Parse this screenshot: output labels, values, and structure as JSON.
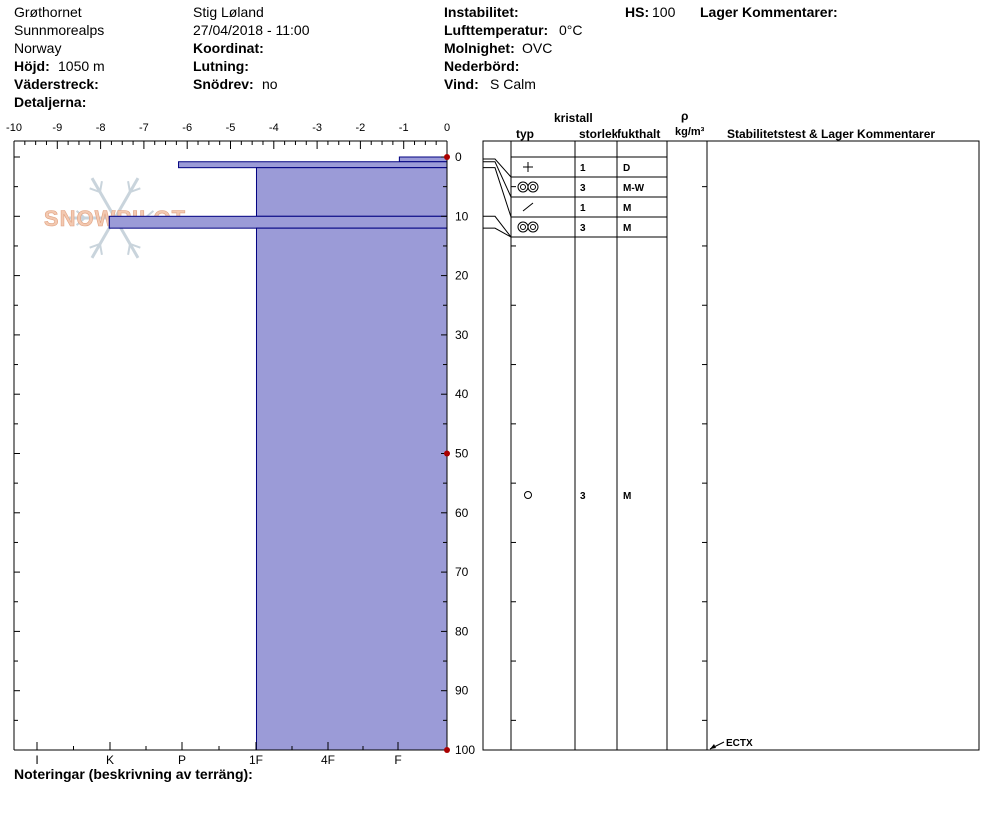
{
  "header": {
    "location": "Grøthornet",
    "range": "Sunnmorealps",
    "country": "Norway",
    "elevation_label": "Höjd:",
    "elevation_value": "1050 m",
    "aspect_label": "Väderstreck:",
    "details_label": "Detaljerna:",
    "observer": "Stig Løland",
    "datetime": "27/04/2018 - 11:00",
    "coord_label": "Koordinat:",
    "slope_label": "Lutning:",
    "wind_loading_label": "Snödrev:",
    "wind_loading_value": "no",
    "instability_label": "Instabilitet:",
    "air_temp_label": "Lufttemperatur:",
    "air_temp_value": "0°C",
    "sky_label": "Molnighet:",
    "sky_value": "OVC",
    "precip_label": "Nederbörd:",
    "wind_label": "Vind:",
    "wind_value": "S Calm",
    "hs_label": "HS:",
    "hs_value": "100",
    "layer_comments_label": "Lager Kommentarer:"
  },
  "footer": {
    "notes_label": "Noteringar (beskrivning av terräng):"
  },
  "logo_text": "SNOWPILOT",
  "table_headers": {
    "kristall": "kristall",
    "typ": "typ",
    "storlek": "storlek",
    "fukthalt": "fukthalt",
    "rho": "ρ",
    "density_unit": "kg/m³",
    "stability": "Stabilitetstest & Lager Kommentarer"
  },
  "chart_data": {
    "type": "bar",
    "title": "",
    "x_axis_top": {
      "ticks": [
        "-10",
        "-9",
        "-8",
        "-7",
        "-6",
        "-5",
        "-4",
        "-3",
        "-2",
        "-1",
        "0"
      ],
      "range": [
        -10,
        0
      ]
    },
    "hardness_axis": {
      "ticks": [
        "I",
        "K",
        "P",
        "1F",
        "4F",
        "F"
      ]
    },
    "y_axis": {
      "ticks": [
        "0",
        "10",
        "20",
        "30",
        "40",
        "50",
        "60",
        "70",
        "80",
        "90",
        "100"
      ],
      "range": [
        0,
        100
      ],
      "inverted": true
    },
    "temperature_points": [
      {
        "depth": 0,
        "temp": 0
      },
      {
        "depth": 50,
        "temp": 0
      },
      {
        "depth": 100,
        "temp": 0
      }
    ],
    "hardness_layers": [
      {
        "top": 0,
        "bottom": 0.8,
        "hardness_index": -1.1
      },
      {
        "top": 0.8,
        "bottom": 1.8,
        "hardness_index": -6.2
      },
      {
        "top": 1.8,
        "bottom": 10,
        "hardness_index": -4.4
      },
      {
        "top": 10,
        "bottom": 12,
        "hardness_index": -7.8
      },
      {
        "top": 12,
        "bottom": 100,
        "hardness_index": -4.4
      }
    ],
    "layer_rows": [
      {
        "grain": "plus",
        "size": "1",
        "moisture": "D"
      },
      {
        "grain": "rounds",
        "size": "3",
        "moisture": "M-W"
      },
      {
        "grain": "slash",
        "size": "1",
        "moisture": "M"
      },
      {
        "grain": "rounds",
        "size": "3",
        "moisture": "M"
      }
    ],
    "mid_row": {
      "depth": 57,
      "grain": "circle",
      "size": "3",
      "moisture": "M"
    },
    "stability_tests": [
      {
        "depth": 100,
        "label": "ECTX"
      }
    ],
    "colors": {
      "fill": "#9b9bd7",
      "stroke": "#000080",
      "temp_marker": "#aa0000"
    }
  }
}
